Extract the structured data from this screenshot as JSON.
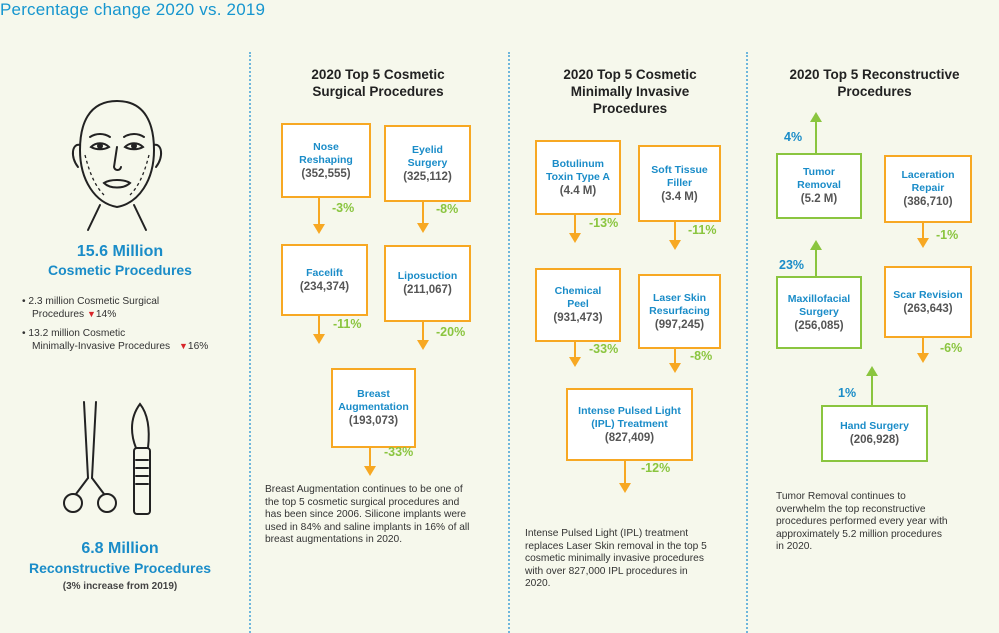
{
  "header": {
    "title": "Percentage change 2020 vs. 2019"
  },
  "left": {
    "cosmetic_total": "15.6 Million",
    "cosmetic_label": "Cosmetic Procedures",
    "bullets": [
      {
        "line1": "2.3 million Cosmetic Surgical",
        "line2": "Procedures",
        "change": "14%"
      },
      {
        "line1": "13.2 million Cosmetic",
        "line2": "Minimally-Invasive Procedures",
        "change": "16%"
      }
    ],
    "reconstructive_total": "6.8 Million",
    "reconstructive_label": "Reconstructive Procedures",
    "reconstructive_note": "(3% increase from 2019)"
  },
  "surgical": {
    "title_l1": "2020 Top 5 Cosmetic",
    "title_l2": "Surgical Procedures",
    "items": [
      {
        "name_l1": "Nose",
        "name_l2": "Reshaping",
        "value": "(352,555)",
        "change": "-3%"
      },
      {
        "name_l1": "Eyelid",
        "name_l2": "Surgery",
        "value": "(325,112)",
        "change": "-8%"
      },
      {
        "name_l1": "Facelift",
        "name_l2": "",
        "value": "(234,374)",
        "change": "-11%"
      },
      {
        "name_l1": "Liposuction",
        "name_l2": "",
        "value": "(211,067)",
        "change": "-20%"
      },
      {
        "name_l1": "Breast",
        "name_l2": "Augmentation",
        "value": "(193,073)",
        "change": "-33%"
      }
    ],
    "note": [
      "Breast Augmentation continues to be one of",
      "the top 5 cosmetic surgical procedures and",
      "has been since 2006. Silicone implants were",
      "used in 84% and saline implants in 16% of all",
      "breast augmentations in 2020."
    ]
  },
  "minimal": {
    "title_l1": "2020 Top 5 Cosmetic",
    "title_l2": "Minimally Invasive",
    "title_l3": "Procedures",
    "items": [
      {
        "name_l1": "Botulinum",
        "name_l2": "Toxin Type A",
        "value": "(4.4 M)",
        "change": "-13%"
      },
      {
        "name_l1": "Soft Tissue",
        "name_l2": "Filler",
        "value": "(3.4 M)",
        "change": "-11%"
      },
      {
        "name_l1": "Chemical",
        "name_l2": "Peel",
        "value": "(931,473)",
        "change": "-33%"
      },
      {
        "name_l1": "Laser Skin",
        "name_l2": "Resurfacing",
        "value": "(997,245)",
        "change": "-8%"
      },
      {
        "name_l1": "Intense Pulsed Light",
        "name_l2": "(IPL) Treatment",
        "value": "(827,409)",
        "change": "-12%"
      }
    ],
    "note": [
      "Intense Pulsed Light (IPL) treatment",
      "replaces Laser Skin removal in the top 5",
      "cosmetic minimally invasive procedures",
      "with over 827,000 IPL procedures in",
      "2020."
    ]
  },
  "reconstructive": {
    "title_l1": "2020 Top 5 Reconstructive",
    "title_l2": "Procedures",
    "items": [
      {
        "name_l1": "Tumor",
        "name_l2": "Removal",
        "value": "(5.2 M)",
        "change": "4%"
      },
      {
        "name_l1": "Laceration",
        "name_l2": "Repair",
        "value": "(386,710)",
        "change": "-1%"
      },
      {
        "name_l1": "Maxillofacial",
        "name_l2": "Surgery",
        "value": "(256,085)",
        "change": "23%"
      },
      {
        "name_l1": "Scar Revision",
        "name_l2": "",
        "value": "(263,643)",
        "change": "-6%"
      },
      {
        "name_l1": "Hand Surgery",
        "name_l2": "",
        "value": "(206,928)",
        "change": "1%"
      }
    ],
    "note": [
      "Tumor Removal continues to",
      "overwhelm the top reconstructive",
      "procedures performed every year with",
      "approximately 5.2 million procedures",
      "in 2020."
    ]
  },
  "colors": {
    "blue": "#1a8cc8",
    "orange": "#f7a823",
    "green": "#8ac53f",
    "red": "#d8262a"
  },
  "icons": [
    "face-icon",
    "surgical-tools-icon",
    "down-arrow-icon"
  ]
}
